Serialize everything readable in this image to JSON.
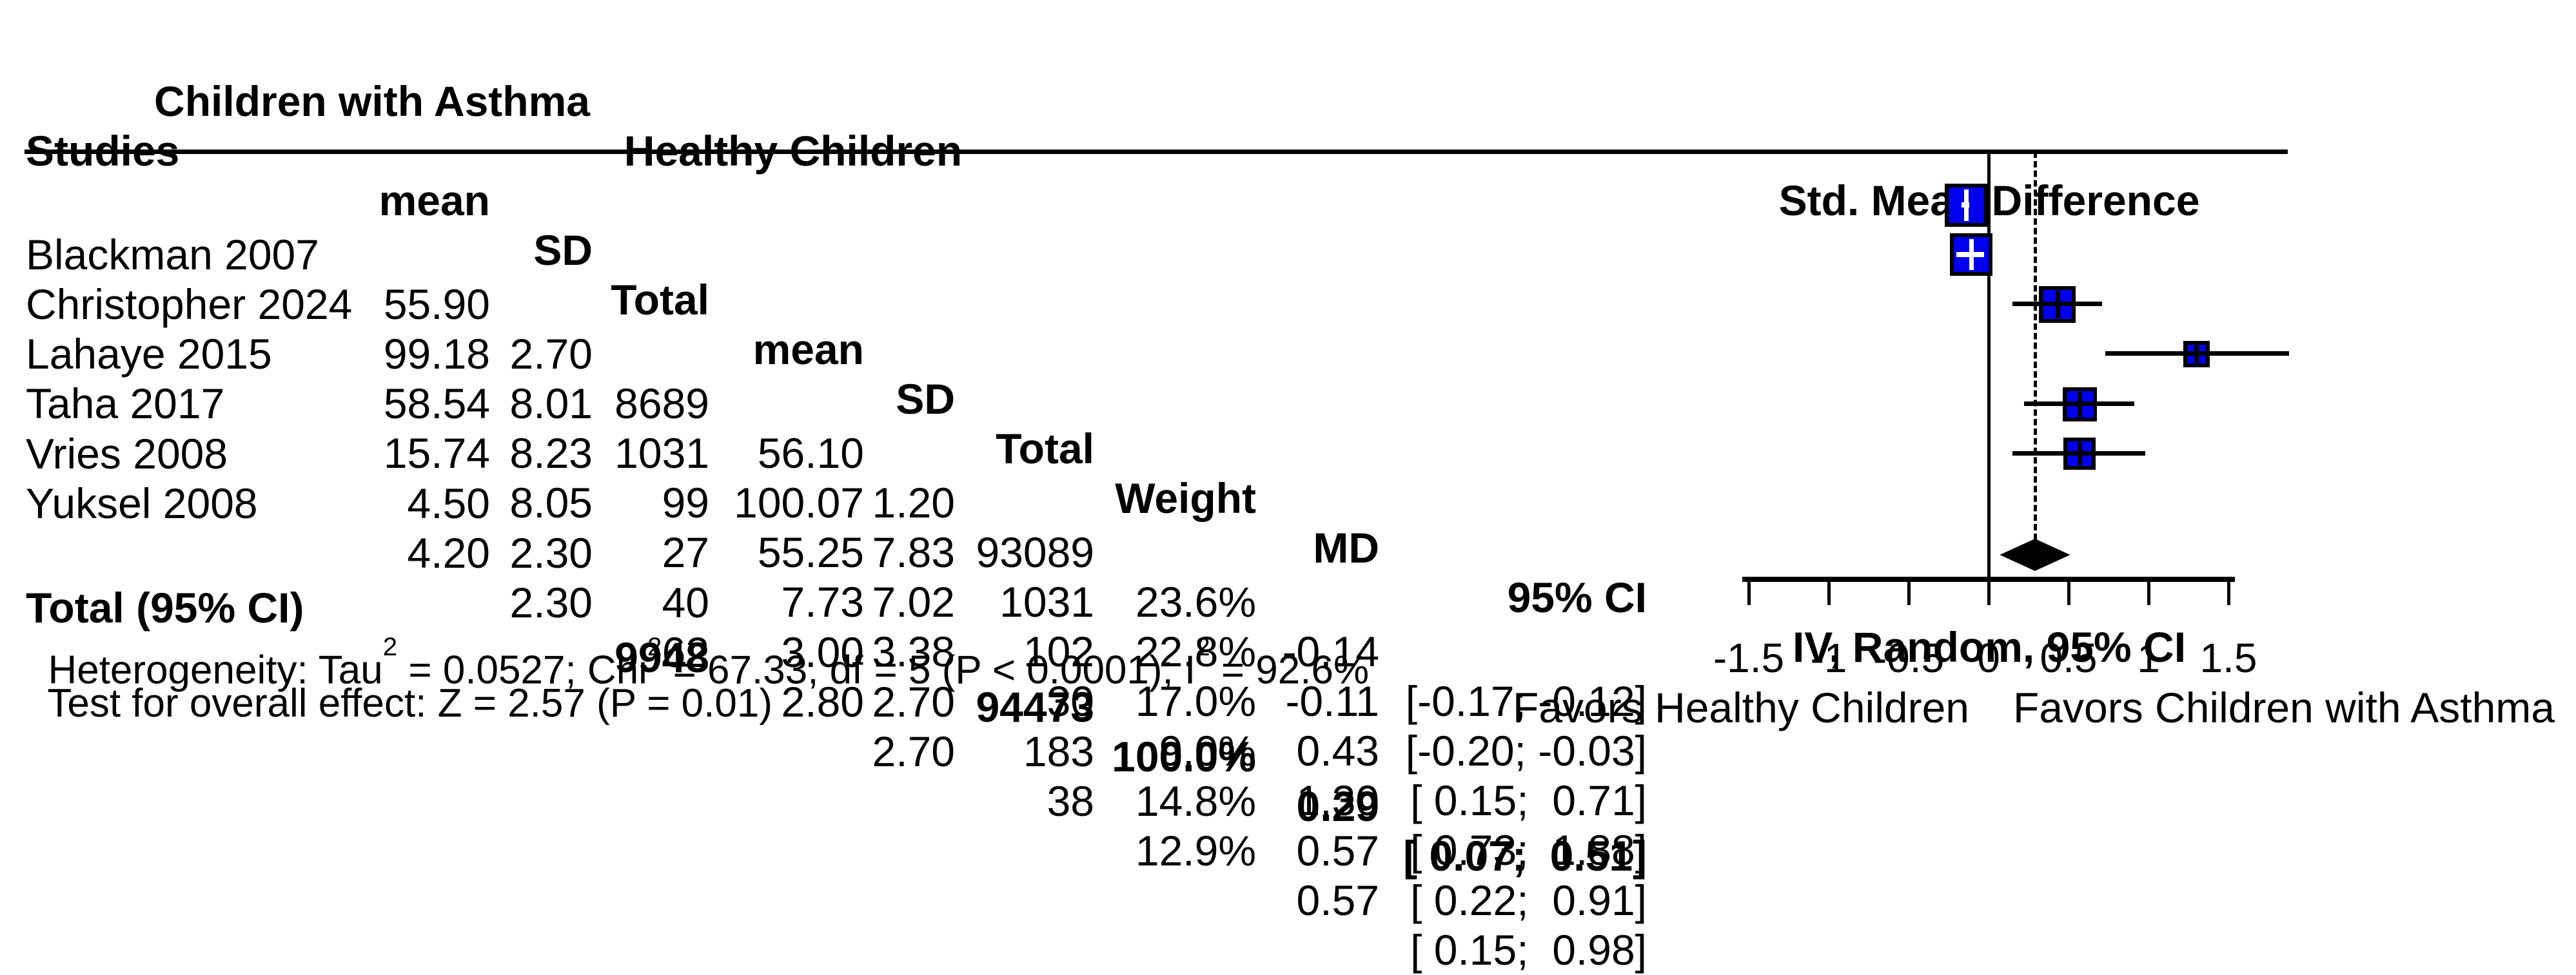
{
  "table": {
    "group_headers": {
      "asthma": "Children with Asthma",
      "healthy": "Healthy Children"
    },
    "columns": {
      "studies": "Studies",
      "mean1": "mean",
      "sd1": "SD",
      "total1": "Total",
      "mean2": "mean",
      "sd2": "SD",
      "total2": "Total",
      "weight": "Weight",
      "md": "MD",
      "ci": "95% CI"
    },
    "rows": [
      {
        "study": "Blackman 2007",
        "mean1": "55.90",
        "sd1": "2.70",
        "total1": "8689",
        "mean2": "56.10",
        "sd2": "1.20",
        "total2": "93089",
        "weight": "23.6%",
        "md": "-0.14",
        "ci": "[-0.17; -0.12]"
      },
      {
        "study": "Christopher 2024",
        "mean1": "99.18",
        "sd1": "8.01",
        "total1": "1031",
        "mean2": "100.07",
        "sd2": "7.83",
        "total2": "1031",
        "weight": "22.8%",
        "md": "-0.11",
        "ci": "[-0.20; -0.03]"
      },
      {
        "study": "Lahaye 2015",
        "mean1": "58.54",
        "sd1": "8.23",
        "total1": "99",
        "mean2": "55.25",
        "sd2": "7.02",
        "total2": "102",
        "weight": "17.0%",
        "md": "0.43",
        "ci": "[ 0.15;  0.71]"
      },
      {
        "study": "Taha 2017",
        "mean1": "15.74",
        "sd1": "8.05",
        "total1": "27",
        "mean2": "7.73",
        "sd2": "3.38",
        "total2": "30",
        "weight": "9.0%",
        "md": "1.30",
        "ci": "[ 0.73;  1.88]"
      },
      {
        "study": "Vries 2008",
        "mean1": "4.50",
        "sd1": "2.30",
        "total1": "40",
        "mean2": "3.00",
        "sd2": "2.70",
        "total2": "183",
        "weight": "14.8%",
        "md": "0.57",
        "ci": "[ 0.22;  0.91]"
      },
      {
        "study": "Yuksel 2008",
        "mean1": "4.20",
        "sd1": "2.30",
        "total1": "62",
        "mean2": "2.80",
        "sd2": "2.70",
        "total2": "38",
        "weight": "12.9%",
        "md": "0.57",
        "ci": "[ 0.15;  0.98]"
      }
    ],
    "total": {
      "label": "Total (95% CI)",
      "total1": "9948",
      "total2": "94473",
      "weight": "100.0%",
      "md": "0.29",
      "ci": "[ 0.07;  0.51]"
    }
  },
  "right_header": {
    "line1": "Std. Mean Difference",
    "line2": "IV, Random, 95% CI"
  },
  "heterogeneity": {
    "p1": "Heterogeneity: Tau",
    "s1": "2",
    "p2": " = 0.0527; Chi",
    "s2": "2",
    "p3": " = 67.33, df = 5 (P < 0.0001); I",
    "s3": "2",
    "p4": " = 92.6%"
  },
  "overall_test": "Test for overall effect: Z = 2.57 (P = 0.01)",
  "axis": {
    "tick_labels": [
      "-1.5",
      "-1",
      "-0.5",
      "0",
      "0.5",
      "1",
      "1.5"
    ],
    "favors_left": "Favors Healthy Children",
    "favors_right": "Favors Children with Asthma"
  },
  "colors": {
    "marker_blue": "#0000EE",
    "diamond_black": "#000000",
    "text": "#000000"
  },
  "chart_data": {
    "type": "scatter",
    "variant": "forest",
    "title": "Std. Mean Difference  IV, Random, 95% CI",
    "xlabel_left": "Favors Healthy Children",
    "xlabel_right": "Favors Children with Asthma",
    "x_ticks": [
      -1.5,
      -1,
      -0.5,
      0,
      0.5,
      1,
      1.5
    ],
    "zero_line": 0,
    "pooled_dashed_line": 0.29,
    "studies": [
      {
        "name": "Blackman 2007",
        "md": -0.14,
        "ci_low": -0.17,
        "ci_high": -0.12,
        "weight_pct": 23.6
      },
      {
        "name": "Christopher 2024",
        "md": -0.11,
        "ci_low": -0.2,
        "ci_high": -0.03,
        "weight_pct": 22.8
      },
      {
        "name": "Lahaye 2015",
        "md": 0.43,
        "ci_low": 0.15,
        "ci_high": 0.71,
        "weight_pct": 17.0
      },
      {
        "name": "Taha 2017",
        "md": 1.3,
        "ci_low": 0.73,
        "ci_high": 1.88,
        "weight_pct": 9.0
      },
      {
        "name": "Vries 2008",
        "md": 0.57,
        "ci_low": 0.22,
        "ci_high": 0.91,
        "weight_pct": 14.8
      },
      {
        "name": "Yuksel 2008",
        "md": 0.57,
        "ci_low": 0.15,
        "ci_high": 0.98,
        "weight_pct": 12.9
      }
    ],
    "overall": {
      "name": "Total (95% CI)",
      "md": 0.29,
      "ci_low": 0.07,
      "ci_high": 0.51,
      "weight_pct": 100.0
    }
  }
}
